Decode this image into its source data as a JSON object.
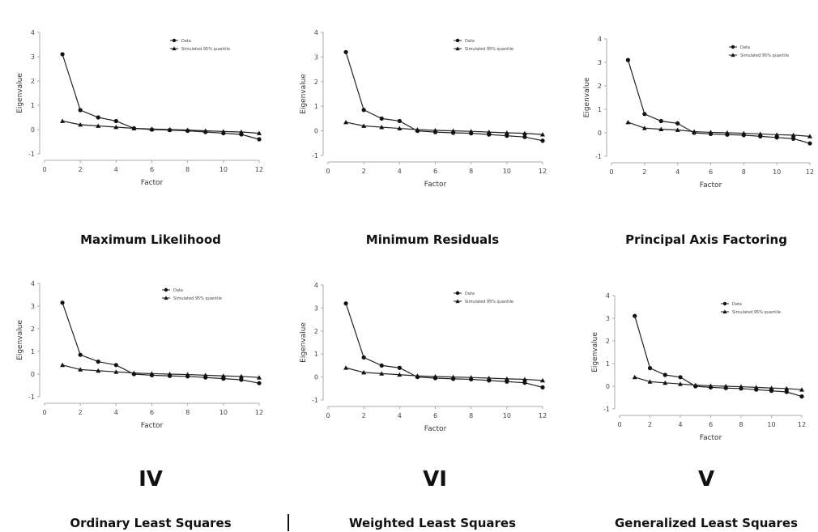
{
  "chart_data": [
    {
      "type": "line",
      "title": "Maximum Likelihood",
      "xlabel": "Factor",
      "ylabel": "Eigenvalue",
      "x": [
        1,
        2,
        3,
        4,
        5,
        6,
        7,
        8,
        9,
        10,
        11,
        12
      ],
      "xticks": [
        "0",
        "2",
        "4",
        "6",
        "8",
        "10",
        "12"
      ],
      "yticks": [
        "-1",
        "0",
        "1",
        "2",
        "3",
        "4"
      ],
      "xlim": [
        0,
        12
      ],
      "ylim": [
        -1,
        4
      ],
      "series": [
        {
          "name": "Data",
          "marker": "circle",
          "values": [
            3.1,
            0.8,
            0.5,
            0.35,
            0.05,
            0.0,
            -0.02,
            -0.05,
            -0.1,
            -0.15,
            -0.2,
            -0.4
          ]
        },
        {
          "name": "Simulated 95% quantile",
          "marker": "triangle",
          "values": [
            0.35,
            0.2,
            0.15,
            0.1,
            0.05,
            0.02,
            0.0,
            -0.02,
            -0.05,
            -0.08,
            -0.1,
            -0.15
          ]
        }
      ]
    },
    {
      "type": "line",
      "title": "Minimum Residuals",
      "xlabel": "Factor",
      "ylabel": "Eigenvalue",
      "x": [
        1,
        2,
        3,
        4,
        5,
        6,
        7,
        8,
        9,
        10,
        11,
        12
      ],
      "xticks": [
        "0",
        "2",
        "4",
        "6",
        "8",
        "10",
        "12"
      ],
      "yticks": [
        "-1",
        "0",
        "1",
        "2",
        "3",
        "4"
      ],
      "xlim": [
        0,
        12
      ],
      "ylim": [
        -1,
        4
      ],
      "series": [
        {
          "name": "Data",
          "marker": "circle",
          "values": [
            3.2,
            0.85,
            0.5,
            0.4,
            0.0,
            -0.05,
            -0.08,
            -0.1,
            -0.15,
            -0.2,
            -0.25,
            -0.4
          ]
        },
        {
          "name": "Simulated 95% quantile",
          "marker": "triangle",
          "values": [
            0.35,
            0.2,
            0.15,
            0.1,
            0.05,
            0.02,
            0.0,
            -0.02,
            -0.05,
            -0.08,
            -0.1,
            -0.15
          ]
        }
      ]
    },
    {
      "type": "line",
      "title": "Principal Axis Factoring",
      "xlabel": "Factor",
      "ylabel": "Eigenvalue",
      "x": [
        1,
        2,
        3,
        4,
        5,
        6,
        7,
        8,
        9,
        10,
        11,
        12
      ],
      "xticks": [
        "0",
        "2",
        "4",
        "6",
        "8",
        "10",
        "12"
      ],
      "yticks": [
        "-1",
        "0",
        "1",
        "2",
        "3",
        "4"
      ],
      "xlim": [
        0,
        12
      ],
      "ylim": [
        -1,
        4
      ],
      "series": [
        {
          "name": "Data",
          "marker": "circle",
          "values": [
            3.1,
            0.8,
            0.5,
            0.4,
            0.0,
            -0.05,
            -0.08,
            -0.1,
            -0.15,
            -0.2,
            -0.25,
            -0.45
          ]
        },
        {
          "name": "Simulated 95% quantile",
          "marker": "triangle",
          "values": [
            0.45,
            0.2,
            0.15,
            0.12,
            0.05,
            0.02,
            0.0,
            -0.02,
            -0.05,
            -0.08,
            -0.1,
            -0.15
          ]
        }
      ]
    },
    {
      "type": "line",
      "title": "Ordinary Least Squares",
      "xlabel": "Factor",
      "ylabel": "Eigenvalue",
      "x": [
        1,
        2,
        3,
        4,
        5,
        6,
        7,
        8,
        9,
        10,
        11,
        12
      ],
      "xticks": [
        "0",
        "2",
        "4",
        "6",
        "8",
        "10",
        "12"
      ],
      "yticks": [
        "-1",
        "0",
        "1",
        "2",
        "3",
        "4"
      ],
      "xlim": [
        0,
        12
      ],
      "ylim": [
        -1,
        4
      ],
      "series": [
        {
          "name": "Data",
          "marker": "circle",
          "values": [
            3.15,
            0.85,
            0.55,
            0.4,
            0.0,
            -0.05,
            -0.08,
            -0.1,
            -0.15,
            -0.2,
            -0.25,
            -0.4
          ]
        },
        {
          "name": "Simulated 95% quantile",
          "marker": "triangle",
          "values": [
            0.4,
            0.2,
            0.15,
            0.1,
            0.05,
            0.02,
            0.0,
            -0.02,
            -0.05,
            -0.08,
            -0.1,
            -0.15
          ]
        }
      ]
    },
    {
      "type": "line",
      "title": "Weighted Least Squares",
      "xlabel": "Factor",
      "ylabel": "Eigenvalue",
      "x": [
        1,
        2,
        3,
        4,
        5,
        6,
        7,
        8,
        9,
        10,
        11,
        12
      ],
      "xticks": [
        "0",
        "2",
        "4",
        "6",
        "8",
        "10",
        "12"
      ],
      "yticks": [
        "-1",
        "0",
        "1",
        "2",
        "3",
        "4"
      ],
      "xlim": [
        0,
        12
      ],
      "ylim": [
        -1,
        4
      ],
      "series": [
        {
          "name": "Data",
          "marker": "circle",
          "values": [
            3.2,
            0.85,
            0.5,
            0.4,
            0.0,
            -0.05,
            -0.08,
            -0.1,
            -0.15,
            -0.2,
            -0.25,
            -0.45
          ]
        },
        {
          "name": "Simulated 95% quantile",
          "marker": "triangle",
          "values": [
            0.4,
            0.2,
            0.15,
            0.1,
            0.05,
            0.02,
            0.0,
            -0.02,
            -0.05,
            -0.08,
            -0.1,
            -0.15
          ]
        }
      ]
    },
    {
      "type": "line",
      "title": "Generalized Least Squares",
      "xlabel": "Factor",
      "ylabel": "Eigenvalue",
      "x": [
        1,
        2,
        3,
        4,
        5,
        6,
        7,
        8,
        9,
        10,
        11,
        12
      ],
      "xticks": [
        "0",
        "2",
        "4",
        "6",
        "8",
        "10",
        "12"
      ],
      "yticks": [
        "-1",
        "0",
        "1",
        "2",
        "3",
        "4"
      ],
      "xlim": [
        0,
        12
      ],
      "ylim": [
        -1,
        4
      ],
      "series": [
        {
          "name": "Data",
          "marker": "circle",
          "values": [
            3.1,
            0.8,
            0.5,
            0.4,
            0.0,
            -0.05,
            -0.08,
            -0.1,
            -0.15,
            -0.2,
            -0.25,
            -0.45
          ]
        },
        {
          "name": "Simulated 95% quantile",
          "marker": "triangle",
          "values": [
            0.4,
            0.2,
            0.15,
            0.1,
            0.05,
            0.02,
            0.0,
            -0.02,
            -0.05,
            -0.08,
            -0.1,
            -0.15
          ]
        }
      ]
    }
  ],
  "labels": {
    "methods": [
      "Maximum Likelihood",
      "Minimum Residuals",
      "Principal Axis Factoring",
      "Ordinary Least Squares",
      "Weighted Least Squares",
      "Generalized Least Squares"
    ],
    "romans": [
      "IV",
      "VI",
      "V"
    ]
  }
}
